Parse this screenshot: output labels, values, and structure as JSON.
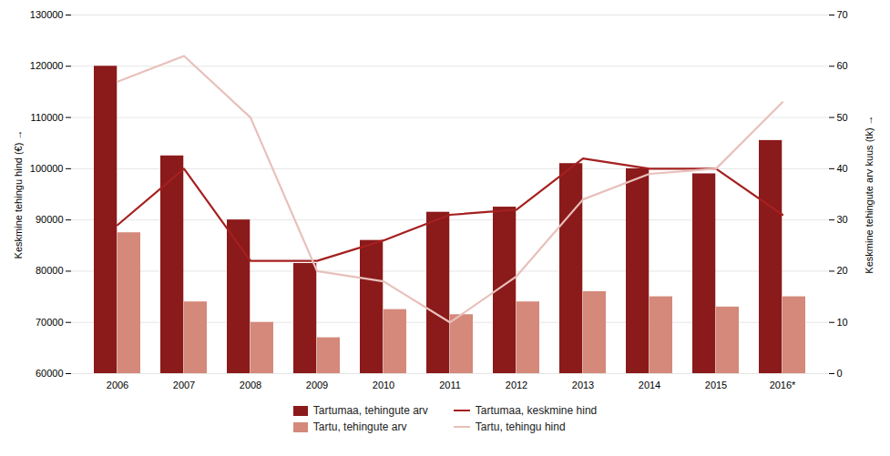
{
  "chart_data": {
    "type": "bar",
    "categories": [
      "2006",
      "2007",
      "2008",
      "2009",
      "2010",
      "2011",
      "2012",
      "2013",
      "2014",
      "2015",
      "2016*"
    ],
    "series": [
      {
        "name": "Tartumaa, tehingute arv",
        "type": "bar",
        "color": "#8B1A1A",
        "axis": "y",
        "values": [
          120000,
          102500,
          90000,
          81500,
          86000,
          91500,
          92500,
          101000,
          100000,
          99000,
          105500
        ]
      },
      {
        "name": "Tartu, tehingute arv",
        "type": "bar",
        "color": "#D4897A",
        "axis": "y",
        "values": [
          87500,
          74000,
          70000,
          67000,
          72500,
          71500,
          74000,
          76000,
          75000,
          73000,
          75000
        ]
      },
      {
        "name": "Tartumaa, keskmine hind",
        "type": "line",
        "color": "#A52020",
        "axis": "y2",
        "values": [
          29,
          40,
          22,
          22,
          26,
          31,
          32,
          42,
          40,
          40,
          31
        ]
      },
      {
        "name": "Tartu, tehingu hind",
        "type": "line",
        "color": "#E8C0BB",
        "axis": "y2",
        "values": [
          57,
          62,
          50,
          20,
          18,
          10,
          19,
          34,
          39,
          40,
          53
        ]
      }
    ],
    "ylabel": "Keskmine tehingu hind (€)",
    "y2label": "Keskmine tehingute arv kuus (tk)",
    "ylim": [
      60000,
      130000
    ],
    "yticks": [
      60000,
      70000,
      80000,
      90000,
      100000,
      110000,
      120000,
      130000
    ],
    "y2lim": [
      0,
      70
    ],
    "y2ticks": [
      0,
      10,
      20,
      30,
      40,
      50,
      60,
      70
    ],
    "grid": true,
    "legend": "bottom"
  }
}
